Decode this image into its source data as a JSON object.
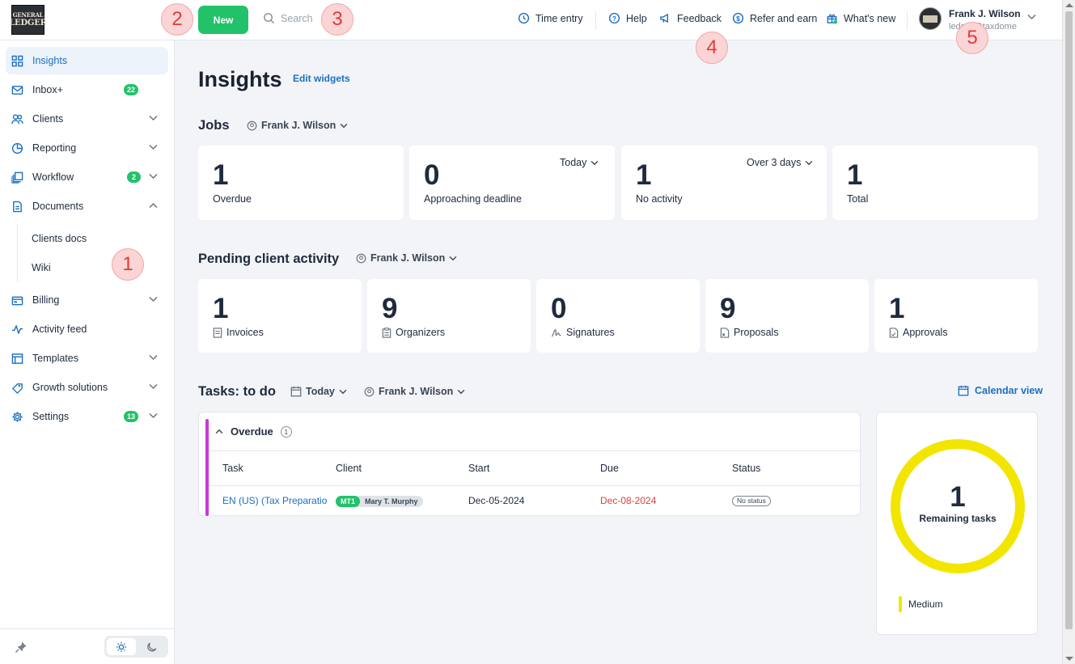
{
  "logo": {
    "line1": "GENERAL",
    "line2": "LEDGER"
  },
  "topbar": {
    "new_label": "New",
    "search_placeholder": "Search",
    "time_entry": "Time entry",
    "help": "Help",
    "feedback": "Feedback",
    "refer": "Refer and earn",
    "whats_new": "What's new",
    "user_name": "Frank J. Wilson",
    "user_email": "ledger@taxdome"
  },
  "sidebar": {
    "items": [
      {
        "label": "Insights",
        "icon": "grid-icon"
      },
      {
        "label": "Inbox+",
        "icon": "mail-icon",
        "badge": "22"
      },
      {
        "label": "Clients",
        "icon": "users-icon"
      },
      {
        "label": "Reporting",
        "icon": "pie-icon"
      },
      {
        "label": "Workflow",
        "icon": "workflow-icon",
        "badge": "2"
      },
      {
        "label": "Documents",
        "icon": "document-icon"
      },
      {
        "label": "Billing",
        "icon": "billing-icon"
      },
      {
        "label": "Activity feed",
        "icon": "activity-icon"
      },
      {
        "label": "Templates",
        "icon": "template-icon"
      },
      {
        "label": "Growth solutions",
        "icon": "growth-icon"
      },
      {
        "label": "Settings",
        "icon": "gear-icon",
        "badge": "13"
      }
    ],
    "sub_items": [
      "Clients docs",
      "Wiki"
    ]
  },
  "main": {
    "title": "Insights",
    "edit_widgets": "Edit widgets",
    "jobs": {
      "title": "Jobs",
      "filter": "Frank J. Wilson",
      "cards": [
        {
          "value": "1",
          "label": "Overdue"
        },
        {
          "value": "0",
          "label": "Approaching deadline",
          "dropdown": "Today"
        },
        {
          "value": "1",
          "label": "No activity",
          "dropdown": "Over 3 days"
        },
        {
          "value": "1",
          "label": "Total"
        }
      ]
    },
    "pending": {
      "title": "Pending client activity",
      "filter": "Frank J. Wilson",
      "cards": [
        {
          "value": "1",
          "label": "Invoices"
        },
        {
          "value": "9",
          "label": "Organizers"
        },
        {
          "value": "0",
          "label": "Signatures"
        },
        {
          "value": "9",
          "label": "Proposals"
        },
        {
          "value": "1",
          "label": "Approvals"
        }
      ]
    },
    "tasks": {
      "title": "Tasks: to do",
      "date_filter": "Today",
      "user_filter": "Frank J. Wilson",
      "calendar_view": "Calendar view",
      "group_label": "Overdue",
      "group_count": "1",
      "columns": [
        "Task",
        "Client",
        "Start",
        "Due",
        "Status"
      ],
      "rows": [
        {
          "task": "EN (US) (Tax Preparation",
          "client_tag": "MT1",
          "client_name": "Mary T. Murphy",
          "start": "Dec-05-2024",
          "due": "Dec-08-2024",
          "status": "No status"
        }
      ]
    },
    "remaining": {
      "value": "1",
      "label": "Remaining tasks",
      "legend": "Medium",
      "color": "#f2e600"
    }
  },
  "markers": [
    "1",
    "2",
    "3",
    "4",
    "5"
  ]
}
